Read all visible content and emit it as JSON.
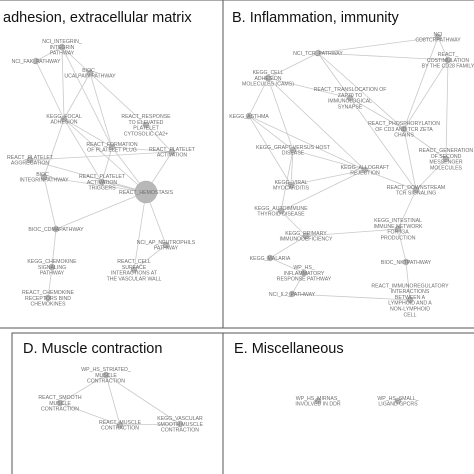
{
  "panels": [
    {
      "id": "a",
      "title": "adhesion, extracellular matrix",
      "nodes": [
        {
          "id": "a1",
          "label": [
            "NCI_INTEGRIN_",
            "INTEGRIN",
            "PATHWAY"
          ],
          "size": "small"
        },
        {
          "id": "a2",
          "label": [
            "NCI_FAK_PATHWAY"
          ],
          "size": "small"
        },
        {
          "id": "a3",
          "label": [
            "BIOC_",
            "UCALPAIN PATHWAY"
          ],
          "size": "small"
        },
        {
          "id": "a4",
          "label": [
            "REACT_RESPONSE",
            "TO ELEVATED",
            "PLATELET",
            "CYTOSOLIC CA2+"
          ],
          "size": "small"
        },
        {
          "id": "a5",
          "label": [
            "KEGG_FOCAL",
            "ADHESION"
          ],
          "size": "small"
        },
        {
          "id": "a6",
          "label": [
            "REACT_FORMATION",
            "OF PLATELET PLUG"
          ],
          "size": "small"
        },
        {
          "id": "a7",
          "label": [
            "REACT_PLATELET",
            "ACTIVATION"
          ],
          "size": "small"
        },
        {
          "id": "a8",
          "label": [
            "REACT_PLATELET",
            "ACTIVATION",
            "TRIGGERS"
          ],
          "size": "small"
        },
        {
          "id": "a9",
          "label": [
            "REACT_PLATELET",
            "AGGREGATION"
          ],
          "size": "small"
        },
        {
          "id": "a10",
          "label": [
            "BIOC_",
            "INTEGRINPATHWAY"
          ],
          "size": "small"
        },
        {
          "id": "a11",
          "label": [
            "REACT_HEMOSTASIS"
          ],
          "size": "large"
        },
        {
          "id": "a12",
          "label": [
            "BIOC_CDMAPATHWAY"
          ],
          "size": "small"
        },
        {
          "id": "a13",
          "label": [
            "NCI_AP_NEUTROPHILS",
            "PATHWAY"
          ],
          "size": "small"
        },
        {
          "id": "a14",
          "label": [
            "REACT_CELL",
            "SURFACE",
            "INTERACTIONS AT",
            "THE VASCULAR WALL"
          ],
          "size": "small"
        },
        {
          "id": "a15",
          "label": [
            "KEGG_CHEMOKINE",
            "SIGNALING",
            "PATHWAY"
          ],
          "size": "small"
        },
        {
          "id": "a16",
          "label": [
            "REACT_CHEMOKINE",
            "RECEPTORS BIND",
            "CHEMOKINES"
          ],
          "size": "small"
        }
      ],
      "edges": [
        [
          "a1",
          "a2"
        ],
        [
          "a1",
          "a3"
        ],
        [
          "a1",
          "a5"
        ],
        [
          "a2",
          "a5"
        ],
        [
          "a3",
          "a5"
        ],
        [
          "a3",
          "a6"
        ],
        [
          "a3",
          "a4"
        ],
        [
          "a4",
          "a7"
        ],
        [
          "a5",
          "a6"
        ],
        [
          "a5",
          "a8"
        ],
        [
          "a5",
          "a10"
        ],
        [
          "a6",
          "a7"
        ],
        [
          "a6",
          "a8"
        ],
        [
          "a6",
          "a11"
        ],
        [
          "a7",
          "a11"
        ],
        [
          "a7",
          "a9"
        ],
        [
          "a8",
          "a11"
        ],
        [
          "a9",
          "a11"
        ],
        [
          "a10",
          "a11"
        ],
        [
          "a10",
          "a12"
        ],
        [
          "a11",
          "a13"
        ],
        [
          "a11",
          "a14"
        ],
        [
          "a11",
          "a12"
        ],
        [
          "a12",
          "a15"
        ],
        [
          "a15",
          "a16"
        ],
        [
          "a13",
          "a14"
        ],
        [
          "a5",
          "a11"
        ],
        [
          "a1",
          "a6"
        ]
      ]
    },
    {
      "id": "b",
      "title": "B. Inflammation, immunity",
      "nodes": [
        {
          "id": "b1",
          "label": [
            "NCI_TCR_PATHWAY"
          ],
          "size": "small"
        },
        {
          "id": "b2",
          "label": [
            "NCI",
            "CD8TCRPATHWAY"
          ],
          "size": "small"
        },
        {
          "id": "b3",
          "label": [
            "REACT_",
            "COSTIMULATION",
            "BY THE CD28 FAMILY"
          ],
          "size": "small"
        },
        {
          "id": "b4",
          "label": [
            "KEGG_CELL",
            "ADHESION",
            "MOLECULES (CAMS)"
          ],
          "size": "small"
        },
        {
          "id": "b5",
          "label": [
            "REACT_TRANSLOCATION OF",
            "ZAP70 TO",
            "IMMUNOLOGICAL",
            "SYNAPSE"
          ],
          "size": "small"
        },
        {
          "id": "b6",
          "label": [
            "KEGG_ASTHMA"
          ],
          "size": "small"
        },
        {
          "id": "b7",
          "label": [
            "REACT_PHOSPHORYLATION",
            "OF CD3 AND TCR ZETA",
            "CHAINS"
          ],
          "size": "small"
        },
        {
          "id": "b8",
          "label": [
            "KEGG_GRAFT VERSUS HOST",
            "DISEASE"
          ],
          "size": "small"
        },
        {
          "id": "b9",
          "label": [
            "REACT_GENERATION",
            "OF SECOND",
            "MESSENGER",
            "MOLECULES"
          ],
          "size": "small"
        },
        {
          "id": "b10",
          "label": [
            "KEGG_VIRAL",
            "MYOCARDITIS"
          ],
          "size": "small"
        },
        {
          "id": "b11",
          "label": [
            "KEGG_ALLOGRAFT",
            "REJECTION"
          ],
          "size": "small"
        },
        {
          "id": "b12",
          "label": [
            "KEGG_AUTOIMMUNE",
            "THYROID DISEASE"
          ],
          "size": "small"
        },
        {
          "id": "b13",
          "label": [
            "REACT_DOWNSTREAM",
            "TCR SIGNALING"
          ],
          "size": "small"
        },
        {
          "id": "b14",
          "label": [
            "KEGG_INTESTINAL",
            "IMMUNE NETWORK",
            "FOR IGA",
            "PRODUCTION"
          ],
          "size": "small"
        },
        {
          "id": "b15",
          "label": [
            "KEGG_PRIMARY",
            "IMMUNODEFICIENCY"
          ],
          "size": "small"
        },
        {
          "id": "b16",
          "label": [
            "KEGG_MALARIA"
          ],
          "size": "small"
        },
        {
          "id": "b17",
          "label": [
            "WP_HS_",
            "INFLAMMATORY",
            "RESPONSE PATHWAY"
          ],
          "size": "small"
        },
        {
          "id": "b18",
          "label": [
            "BIOC_NKTPATHWAY"
          ],
          "size": "small"
        },
        {
          "id": "b19",
          "label": [
            "NCI_IL2_PATHWAY"
          ],
          "size": "small"
        },
        {
          "id": "b20",
          "label": [
            "REACT_IMMUNOREGULATORY",
            "INTERACTIONS",
            "BETWEEN A",
            "LYMPHOID AND A",
            "NON-LYMPHOID",
            "CELL"
          ],
          "size": "small"
        }
      ],
      "edges": [
        [
          "b1",
          "b2"
        ],
        [
          "b1",
          "b4"
        ],
        [
          "b1",
          "b5"
        ],
        [
          "b1",
          "b7"
        ],
        [
          "b2",
          "b3"
        ],
        [
          "b2",
          "b7"
        ],
        [
          "b3",
          "b7"
        ],
        [
          "b3",
          "b9"
        ],
        [
          "b4",
          "b6"
        ],
        [
          "b4",
          "b8"
        ],
        [
          "b4",
          "b5"
        ],
        [
          "b4",
          "b11"
        ],
        [
          "b5",
          "b7"
        ],
        [
          "b5",
          "b13"
        ],
        [
          "b6",
          "b8"
        ],
        [
          "b6",
          "b11"
        ],
        [
          "b7",
          "b9"
        ],
        [
          "b7",
          "b13"
        ],
        [
          "b8",
          "b11"
        ],
        [
          "b8",
          "b10"
        ],
        [
          "b8",
          "b12"
        ],
        [
          "b10",
          "b11"
        ],
        [
          "b11",
          "b12"
        ],
        [
          "b11",
          "b13"
        ],
        [
          "b9",
          "b13"
        ],
        [
          "b13",
          "b14"
        ],
        [
          "b12",
          "b15"
        ],
        [
          "b14",
          "b15"
        ],
        [
          "b15",
          "b16"
        ],
        [
          "b16",
          "b17"
        ],
        [
          "b17",
          "b19"
        ],
        [
          "b18",
          "b20"
        ],
        [
          "b18",
          "b14"
        ],
        [
          "b19",
          "b20"
        ],
        [
          "b6",
          "b10"
        ],
        [
          "b1",
          "b3"
        ]
      ]
    },
    {
      "id": "d",
      "title": "D. Muscle contraction",
      "nodes": [
        {
          "id": "d1",
          "label": [
            "WP_HS_STRIATED_",
            "MUSCLE",
            "CONTRACTION"
          ],
          "size": "small"
        },
        {
          "id": "d2",
          "label": [
            "REACT_SMOOTH",
            "MUSCLE",
            "CONTRACTION"
          ],
          "size": "small"
        },
        {
          "id": "d3",
          "label": [
            "REACT_MUSCLE",
            "CONTRACTION"
          ],
          "size": "small"
        },
        {
          "id": "d4",
          "label": [
            "KEGG_VASCULAR",
            "SMOOTH MUSCLE",
            "CONTRACTION"
          ],
          "size": "small"
        }
      ],
      "edges": [
        [
          "d1",
          "d2"
        ],
        [
          "d1",
          "d3"
        ],
        [
          "d2",
          "d3"
        ],
        [
          "d3",
          "d4"
        ],
        [
          "d1",
          "d4"
        ]
      ]
    },
    {
      "id": "e",
      "title": "E. Miscellaneous",
      "nodes": [
        {
          "id": "e1",
          "label": [
            "WP_HS_MIRNAS_",
            "INVOLVED IN DDR"
          ],
          "size": "small"
        },
        {
          "id": "e2",
          "label": [
            "WP_HS_SMALL_",
            "LIGAND GPCRS"
          ],
          "size": "small"
        }
      ],
      "edges": []
    }
  ],
  "colors": {
    "node_fill": "#b8b8b8",
    "edge": "#c9c9c9",
    "frame": "#555555",
    "label": "#6e6e6e"
  }
}
